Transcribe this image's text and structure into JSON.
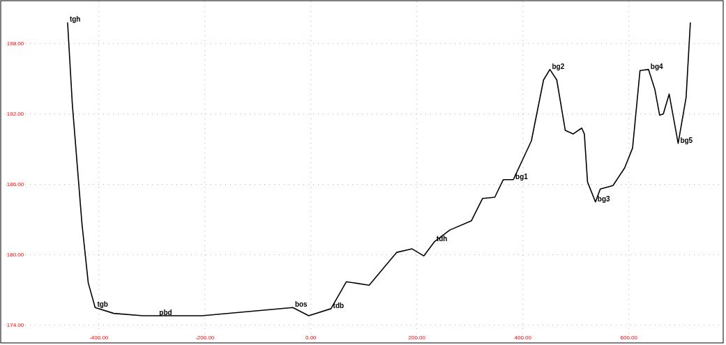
{
  "chart_data": {
    "type": "line",
    "xlim": [
      -576,
      778
    ],
    "ylim": [
      172.6,
      201.6
    ],
    "xticks": [
      {
        "value": -400,
        "label": "-400.00"
      },
      {
        "value": -200,
        "label": "-200.00"
      },
      {
        "value": 0,
        "label": "0.00"
      },
      {
        "value": 200,
        "label": "200.00"
      },
      {
        "value": 400,
        "label": "400.00"
      },
      {
        "value": 600,
        "label": "600.00"
      }
    ],
    "yticks": [
      {
        "value": 174,
        "label": "174.00"
      },
      {
        "value": 180,
        "label": "180.00"
      },
      {
        "value": 186,
        "label": "186.00"
      },
      {
        "value": 192,
        "label": "192.00"
      },
      {
        "value": 198,
        "label": "198.00"
      }
    ],
    "grid": true,
    "marker": "none",
    "line_style": "solid",
    "series": [
      {
        "color": "#000000",
        "x": [
          -459,
          -450,
          -432,
          -420,
          -407,
          -372,
          -317,
          -205,
          -34,
          -4,
          38,
          67,
          110,
          162,
          191,
          213,
          233,
          262,
          303,
          324,
          347,
          363,
          382,
          416,
          439,
          451,
          464,
          480,
          495,
          511,
          516,
          522,
          537,
          546,
          570,
          592,
          607,
          621,
          637,
          649,
          658,
          665,
          676,
          693,
          708,
          716
        ],
        "values": [
          199.8,
          192.8,
          182.7,
          177.6,
          175.5,
          175.0,
          174.8,
          174.8,
          175.5,
          174.8,
          175.4,
          177.7,
          177.4,
          180.2,
          180.5,
          179.9,
          181.1,
          182.1,
          182.9,
          184.8,
          184.9,
          186.4,
          186.4,
          189.7,
          194.9,
          195.8,
          194.9,
          190.6,
          190.3,
          190.8,
          190.3,
          186.2,
          184.5,
          185.6,
          185.9,
          187.4,
          189.1,
          195.7,
          195.8,
          194.1,
          191.9,
          192.0,
          193.7,
          189.5,
          193.4,
          199.8
        ]
      }
    ],
    "annotations": [
      {
        "text": "tgh",
        "x": -459,
        "y": 199.8
      },
      {
        "text": "tgb",
        "x": -407,
        "y": 175.5
      },
      {
        "text": "pbd",
        "x": -290,
        "y": 174.8
      },
      {
        "text": "bos",
        "x": -34,
        "y": 175.5
      },
      {
        "text": "tdb",
        "x": 38,
        "y": 175.4
      },
      {
        "text": "tdh",
        "x": 233,
        "y": 181.1
      },
      {
        "text": "bg1",
        "x": 382,
        "y": 186.4
      },
      {
        "text": "bg2",
        "x": 451,
        "y": 195.8
      },
      {
        "text": "bg3",
        "x": 537,
        "y": 184.5
      },
      {
        "text": "bg4",
        "x": 637,
        "y": 195.8
      },
      {
        "text": "bg5",
        "x": 693,
        "y": 189.5
      }
    ]
  }
}
